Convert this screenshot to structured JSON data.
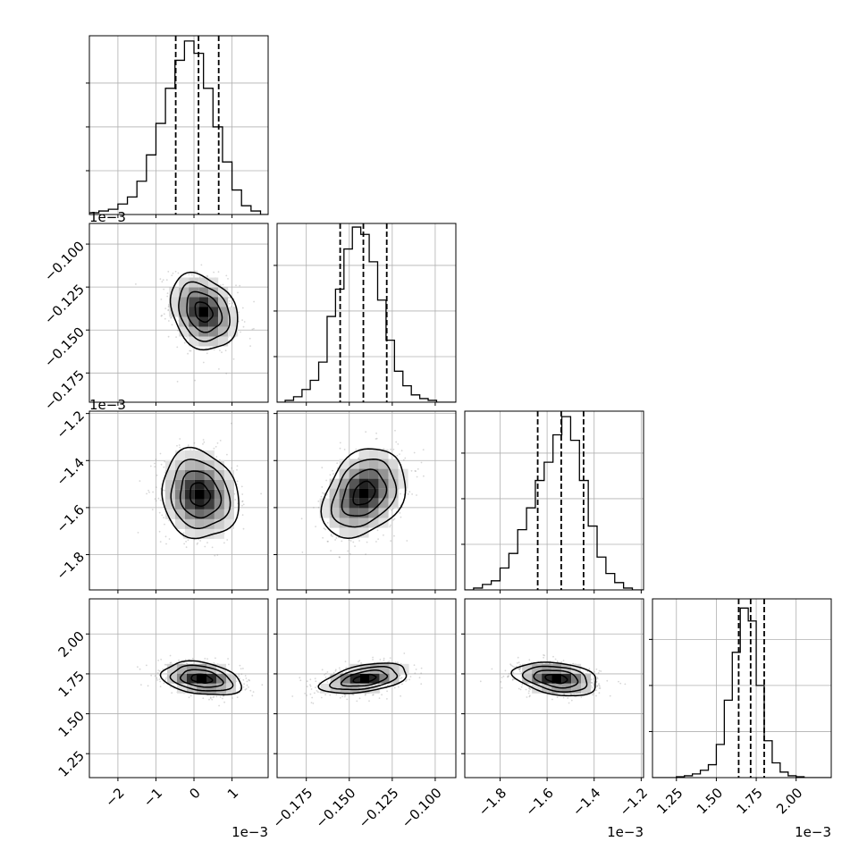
{
  "chart_data": {
    "type": "corner",
    "parameters": [
      {
        "range": [
          -2.75,
          1.95
        ],
        "ticks": [
          -2,
          -1,
          0,
          1
        ],
        "tick_labels": [
          "−2",
          "−1",
          "0",
          "1"
        ],
        "offset_text": "1e−3",
        "offset_show_x": true,
        "offset_show_y": false
      },
      {
        "range": [
          -0.192,
          -0.088
        ],
        "ticks": [
          -0.175,
          -0.15,
          -0.125,
          -0.1
        ],
        "tick_labels": [
          "−0.175",
          "−0.150",
          "−0.125",
          "−0.100"
        ],
        "offset_text": "1e−3",
        "offset_show_x": false,
        "offset_show_y": true
      },
      {
        "range": [
          -1.95,
          -1.19
        ],
        "ticks": [
          -1.8,
          -1.6,
          -1.4,
          -1.2
        ],
        "tick_labels": [
          "−1.8",
          "−1.6",
          "−1.4",
          "−1.2"
        ],
        "offset_text": "1e−3",
        "offset_show_x": true,
        "offset_show_y": true
      },
      {
        "range": [
          1.1,
          2.22
        ],
        "ticks": [
          1.25,
          1.5,
          1.75,
          2.0
        ],
        "tick_labels": [
          "1.25",
          "1.50",
          "1.75",
          "2.00"
        ],
        "offset_text": "1e−3",
        "offset_show_x": true,
        "offset_show_y": false
      }
    ],
    "marginals": [
      {
        "edges": [
          -2.75,
          -2.5,
          -2.25,
          -2.0,
          -1.75,
          -1.5,
          -1.25,
          -1.0,
          -0.75,
          -0.5,
          -0.25,
          0.0,
          0.25,
          0.5,
          0.75,
          1.0,
          1.25,
          1.5,
          1.75,
          1.95
        ],
        "counts": [
          0.01,
          0.02,
          0.03,
          0.06,
          0.1,
          0.19,
          0.34,
          0.52,
          0.72,
          0.88,
          0.99,
          0.92,
          0.72,
          0.5,
          0.3,
          0.14,
          0.05,
          0.02,
          0.0
        ],
        "quantiles": [
          -0.48,
          0.12,
          0.65
        ],
        "ymax": 1.02
      },
      {
        "edges": [
          -0.192,
          -0.1873,
          -0.1824,
          -0.1775,
          -0.1727,
          -0.1678,
          -0.1629,
          -0.158,
          -0.1531,
          -0.1482,
          -0.1433,
          -0.1384,
          -0.1335,
          -0.1286,
          -0.1237,
          -0.1188,
          -0.1139,
          -0.109,
          -0.1041,
          -0.0992,
          -0.088
        ],
        "counts": [
          0.0,
          0.01,
          0.03,
          0.07,
          0.12,
          0.22,
          0.47,
          0.62,
          0.84,
          0.96,
          0.92,
          0.77,
          0.56,
          0.34,
          0.17,
          0.09,
          0.04,
          0.02,
          0.01,
          0.0
        ],
        "quantiles": [
          -0.1553,
          -0.1418,
          -0.1282
        ],
        "ymax": 0.98
      },
      {
        "edges": [
          -1.95,
          -1.9125,
          -1.875,
          -1.8375,
          -1.8,
          -1.7625,
          -1.725,
          -1.6875,
          -1.65,
          -1.6125,
          -1.575,
          -1.5375,
          -1.5,
          -1.4625,
          -1.425,
          -1.3875,
          -1.35,
          -1.3125,
          -1.275,
          -1.2375,
          -1.19
        ],
        "counts": [
          0.0,
          0.01,
          0.03,
          0.05,
          0.12,
          0.2,
          0.33,
          0.45,
          0.6,
          0.7,
          0.85,
          0.95,
          0.82,
          0.6,
          0.35,
          0.18,
          0.09,
          0.04,
          0.01,
          0.0
        ],
        "quantiles": [
          -1.64,
          -1.54,
          -1.445
        ],
        "ymax": 0.98
      },
      {
        "edges": [
          1.1,
          1.15,
          1.2,
          1.25,
          1.3,
          1.35,
          1.4,
          1.45,
          1.5,
          1.55,
          1.6,
          1.65,
          1.7,
          1.75,
          1.8,
          1.85,
          1.9,
          1.95,
          2.0,
          2.05,
          2.1,
          2.22
        ],
        "counts": [
          0.0,
          0.0,
          0.0,
          0.005,
          0.01,
          0.02,
          0.04,
          0.07,
          0.18,
          0.42,
          0.68,
          0.92,
          0.85,
          0.5,
          0.2,
          0.08,
          0.03,
          0.01,
          0.005,
          0.0,
          0.0
        ],
        "quantiles": [
          1.64,
          1.715,
          1.8
        ],
        "ymax": 0.97
      }
    ],
    "pairs": [
      {
        "i": 1,
        "j": 0,
        "mean_x": 0.25,
        "mean_y": -0.1395,
        "sx": 0.42,
        "sy": 0.0105,
        "rho": -0.25
      },
      {
        "i": 2,
        "j": 0,
        "mean_x": 0.15,
        "mean_y": -1.545,
        "sx": 0.48,
        "sy": 0.09,
        "rho": -0.12
      },
      {
        "i": 2,
        "j": 1,
        "mean_x": -0.1415,
        "mean_y": -1.54,
        "sx": 0.0115,
        "sy": 0.09,
        "rho": 0.3
      },
      {
        "i": 3,
        "j": 0,
        "mean_x": 0.2,
        "mean_y": 1.72,
        "sx": 0.5,
        "sy": 0.05,
        "rho": -0.3
      },
      {
        "i": 3,
        "j": 1,
        "mean_x": -0.141,
        "mean_y": 1.72,
        "sx": 0.012,
        "sy": 0.045,
        "rho": 0.45
      },
      {
        "i": 3,
        "j": 2,
        "mean_x": -1.56,
        "mean_y": 1.72,
        "sx": 0.085,
        "sy": 0.05,
        "rho": -0.3
      }
    ],
    "grid": true,
    "title": "",
    "xlabel": "",
    "ylabel": ""
  }
}
